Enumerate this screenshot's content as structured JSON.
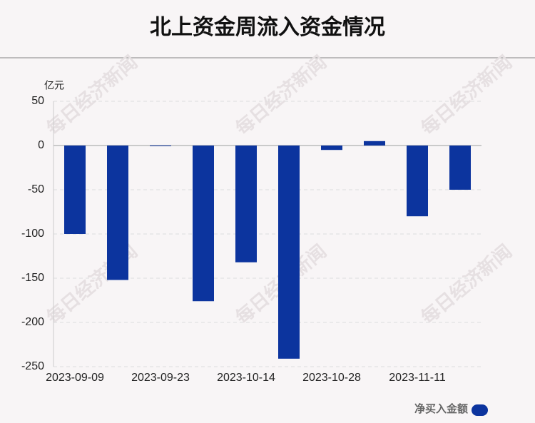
{
  "chart_data": {
    "type": "bar",
    "title": "北上资金周流入资金情况",
    "y_unit": "亿元",
    "watermark": "每日经济新闻",
    "categories": [
      "2023-09-09",
      null,
      "2023-09-23",
      null,
      "2023-10-14",
      null,
      "2023-10-28",
      null,
      "2023-11-11",
      null
    ],
    "series": [
      {
        "name": "净买入金额",
        "color": "#0c349e",
        "values": [
          -100,
          -152,
          -0.5,
          -176,
          -132,
          -241,
          -5,
          5,
          -80,
          -50
        ]
      }
    ],
    "ylim": [
      -250,
      50
    ],
    "yticks": [
      50,
      0,
      -50,
      -100,
      -150,
      -200,
      -250
    ],
    "grid": true,
    "legend": "bottom-right"
  }
}
